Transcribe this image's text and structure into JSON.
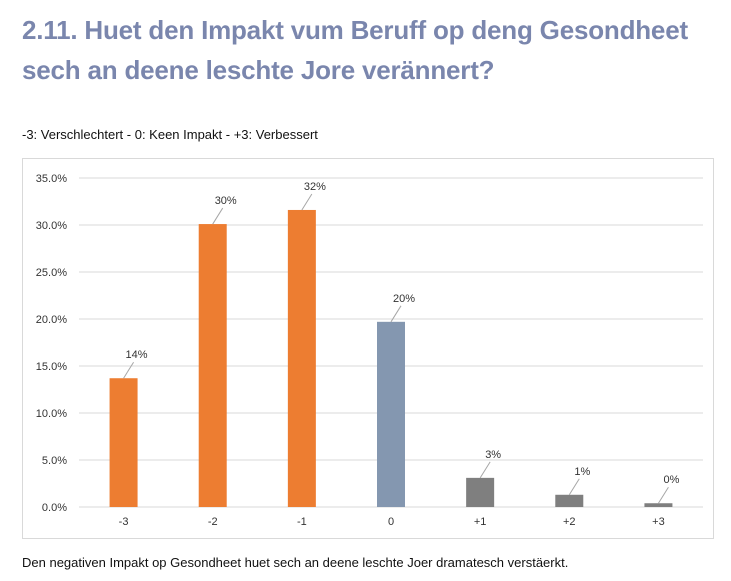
{
  "page": {
    "title": "2.11. Huet den Impakt vum Beruff op deng Gesondheet sech an deene leschte Jore verännert?",
    "scale_note": "-3: Verschlechtert  -  0: Keen Impakt  -  +3: Verbessert",
    "caption": "Den negativen Impakt op Gesondheet huet sech an deene leschte Joer dramatesch verstäerkt."
  },
  "chart_data": {
    "type": "bar",
    "categories": [
      "-3",
      "-2",
      "-1",
      "0",
      "+1",
      "+2",
      "+3"
    ],
    "values": [
      0.137,
      0.301,
      0.316,
      0.197,
      0.031,
      0.013,
      0.004
    ],
    "data_labels": [
      "14%",
      "30%",
      "32%",
      "20%",
      "3%",
      "1%",
      "0%"
    ],
    "bar_colors": [
      "#ed7d31",
      "#ed7d31",
      "#ed7d31",
      "#8497b0",
      "#7f7f7f",
      "#7f7f7f",
      "#7f7f7f"
    ],
    "ylim": [
      0,
      0.35
    ],
    "yticks": [
      0,
      0.05,
      0.1,
      0.15,
      0.2,
      0.25,
      0.3,
      0.35
    ],
    "ytick_labels": [
      "0.0%",
      "5.0%",
      "10.0%",
      "15.0%",
      "20.0%",
      "25.0%",
      "30.0%",
      "35.0%"
    ],
    "grid": true,
    "gridline_color": "#d9d9d9",
    "leader_line_color": "#a6a6a6"
  }
}
